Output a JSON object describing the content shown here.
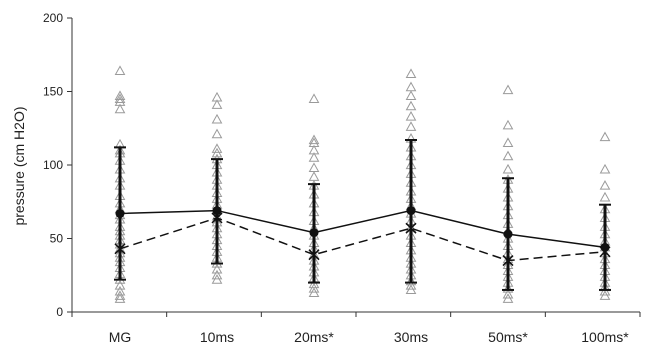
{
  "chart_data": {
    "type": "scatter",
    "title": "",
    "xlabel": "",
    "ylabel": "pressure (cm H2O)",
    "ylim": [
      0,
      200
    ],
    "yticks": [
      0,
      50,
      100,
      150,
      200
    ],
    "categories": [
      "MG",
      "10ms",
      "20ms*",
      "30ms",
      "50ms*",
      "100ms*"
    ],
    "grid": false,
    "colors": {
      "points": "#9a9a9a",
      "lines": "#111111",
      "axis": "#333333"
    },
    "series": [
      {
        "values": [
          [
            164,
            147,
            145,
            143,
            138,
            114,
            110,
            108,
            103,
            97,
            91,
            86,
            79,
            74,
            70,
            66,
            63,
            58,
            55,
            52,
            49,
            46,
            43,
            40,
            37,
            34,
            30,
            26,
            22,
            18,
            14,
            11,
            9
          ],
          [
            146,
            141,
            131,
            121,
            111,
            108,
            104,
            100,
            95,
            90,
            86,
            81,
            77,
            73,
            69,
            65,
            61,
            57,
            53,
            49,
            45,
            41,
            37,
            33,
            29,
            25,
            22
          ],
          [
            145,
            117,
            115,
            110,
            105,
            98,
            92,
            86,
            80,
            74,
            68,
            62,
            57,
            52,
            47,
            43,
            39,
            35,
            31,
            27,
            23,
            19,
            16,
            13
          ],
          [
            162,
            153,
            147,
            140,
            133,
            126,
            118,
            112,
            106,
            100,
            94,
            88,
            82,
            77,
            72,
            67,
            62,
            57,
            52,
            47,
            42,
            37,
            33,
            29,
            25,
            21,
            18,
            15
          ],
          [
            151,
            127,
            115,
            106,
            97,
            90,
            84,
            78,
            72,
            66,
            60,
            55,
            50,
            45,
            40,
            36,
            32,
            28,
            24,
            20,
            16,
            12,
            9
          ],
          [
            119,
            97,
            86,
            78,
            70,
            64,
            58,
            53,
            48,
            44,
            40,
            36,
            32,
            28,
            24,
            20,
            17,
            14,
            11
          ]
        ]
      },
      {
        "style": "solid",
        "marker": "filled-circle",
        "values": [
          67,
          69,
          54,
          69,
          53,
          44
        ],
        "upper": [
          112,
          104,
          87,
          117,
          91,
          73
        ],
        "lower": [
          22,
          33,
          20,
          20,
          15,
          15
        ]
      },
      {
        "style": "dashed",
        "marker": "x",
        "values": [
          43,
          64,
          39,
          57,
          35,
          41
        ]
      }
    ]
  }
}
